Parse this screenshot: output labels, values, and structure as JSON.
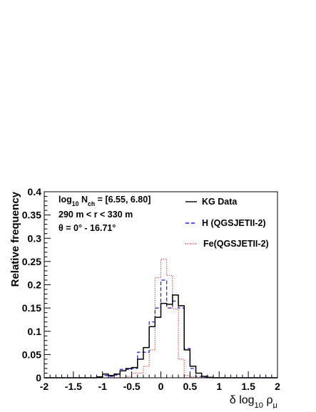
{
  "chart_data": {
    "type": "histogram",
    "title": "",
    "xlabel": "δ log₁₀ ρ_μ",
    "ylabel": "Relative frequency",
    "xlim": [
      -2,
      2
    ],
    "ylim": [
      0,
      0.4
    ],
    "x_ticks": [
      "-2",
      "-1.5",
      "-1",
      "-0.5",
      "0",
      "0.5",
      "1",
      "1.5",
      "2"
    ],
    "y_ticks": [
      "0",
      "0.05",
      "0.1",
      "0.15",
      "0.2",
      "0.25",
      "0.3",
      "0.35",
      "0.4"
    ],
    "grid": false,
    "legend_position": "top-right",
    "annotations": [
      "log₁₀ N_ch = [6.55, 6.80]",
      "290 m < r < 330 m",
      "θ = 0° - 16.71°"
    ],
    "bin_edges": [
      -2.0,
      -1.9,
      -1.8,
      -1.7,
      -1.6,
      -1.5,
      -1.4,
      -1.3,
      -1.2,
      -1.1,
      -1.0,
      -0.9,
      -0.8,
      -0.7,
      -0.6,
      -0.5,
      -0.4,
      -0.3,
      -0.2,
      -0.1,
      0.0,
      0.1,
      0.2,
      0.3,
      0.4,
      0.5,
      0.6,
      0.7,
      0.8,
      0.9,
      1.0,
      1.1,
      1.2,
      1.3,
      1.4,
      1.5,
      1.6,
      1.7,
      1.8,
      1.9,
      2.0
    ],
    "series": [
      {
        "name": "KG Data",
        "color": "#000000",
        "dash": "solid",
        "values": [
          0,
          0,
          0,
          0,
          0,
          0,
          0,
          0,
          0,
          0.002,
          0.008,
          0.005,
          0.008,
          0.015,
          0.02,
          0.022,
          0.04,
          0.065,
          0.11,
          0.13,
          0.16,
          0.158,
          0.178,
          0.155,
          0.06,
          0.025,
          0.01,
          0.003,
          0.001,
          0,
          0,
          0,
          0,
          0,
          0,
          0,
          0,
          0,
          0,
          0
        ]
      },
      {
        "name": "H (QGSJETII-2)",
        "color": "#1a1adb",
        "dash": "dashed",
        "values": [
          0,
          0,
          0,
          0,
          0,
          0,
          0,
          0,
          0,
          0.001,
          0.005,
          0.003,
          0.006,
          0.018,
          0.018,
          0.02,
          0.055,
          0.055,
          0.12,
          0.15,
          0.21,
          0.15,
          0.165,
          0.15,
          0.063,
          0.02,
          0.003,
          0.001,
          0,
          0,
          0,
          0,
          0,
          0,
          0,
          0,
          0,
          0,
          0,
          0
        ]
      },
      {
        "name": "Fe(QGSJETII-2)",
        "color": "#e8393a",
        "dash": "dotted",
        "values": [
          0,
          0,
          0,
          0,
          0,
          0,
          0,
          0,
          0,
          0,
          0,
          0,
          0,
          0,
          0.003,
          0.01,
          0.01,
          0.025,
          0.06,
          0.215,
          0.255,
          0.22,
          0.148,
          0.04,
          0.005,
          0.002,
          0,
          0,
          0,
          0,
          0,
          0,
          0,
          0,
          0,
          0,
          0,
          0,
          0,
          0
        ]
      }
    ]
  }
}
